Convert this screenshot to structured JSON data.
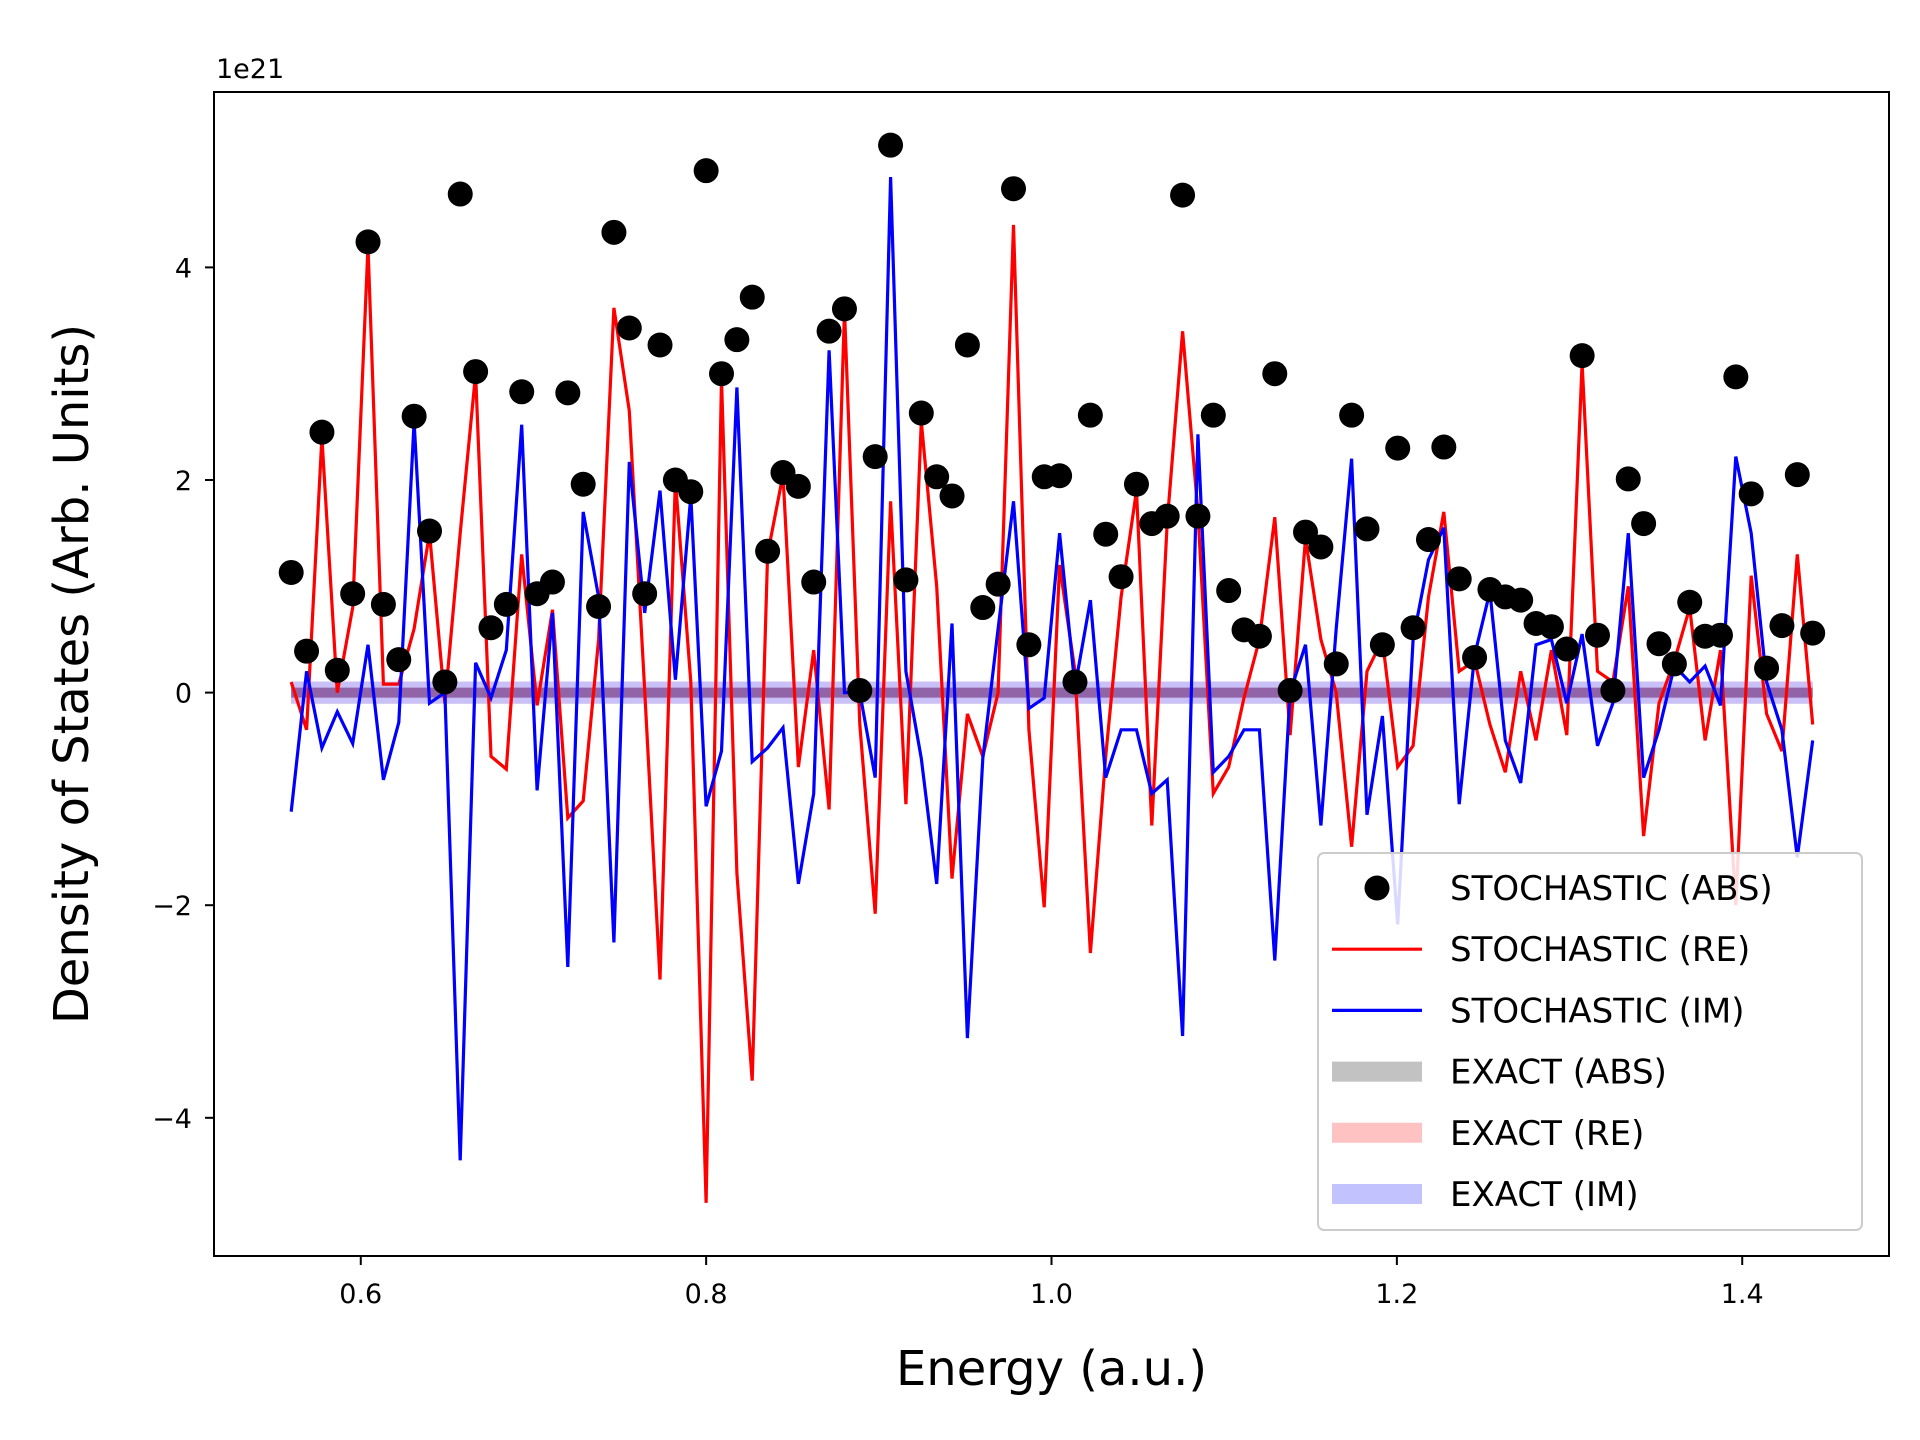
{
  "chart_data": {
    "type": "line",
    "xlabel": "Energy (a.u.)",
    "ylabel": "Density of States (Arb. Units)",
    "y_offset_text": "1e21",
    "xlim": [
      0.515,
      1.485
    ],
    "ylim": [
      -5.3e+21,
      5.65e+21
    ],
    "x_ticks": [
      0.6,
      0.8,
      1.0,
      1.2,
      1.4
    ],
    "x_tick_labels": [
      "0.6",
      "0.8",
      "1.0",
      "1.2",
      "1.4"
    ],
    "y_ticks": [
      -4,
      -2,
      0,
      2,
      4
    ],
    "y_tick_labels": [
      "−4",
      "−2",
      "0",
      "2",
      "4"
    ],
    "y_scale": 1e+21,
    "grid": false,
    "legend_position": "lower-right",
    "colors": {
      "stochastic_abs": "#000000",
      "stochastic_re": "#ff0000",
      "stochastic_im": "#0000ff",
      "exact_abs": "#bfbfbf",
      "exact_re": "#ffbfbf",
      "exact_im": "#bfbfff",
      "exact_overlap": "#8a5a9e"
    },
    "x": [
      0.5597,
      0.5686,
      0.5775,
      0.5864,
      0.5953,
      0.6042,
      0.6131,
      0.622,
      0.6309,
      0.6398,
      0.6487,
      0.6576,
      0.6665,
      0.6754,
      0.6843,
      0.6932,
      0.7021,
      0.711,
      0.7199,
      0.7288,
      0.7377,
      0.7466,
      0.7555,
      0.7644,
      0.7733,
      0.7822,
      0.7911,
      0.8,
      0.8089,
      0.8178,
      0.8267,
      0.8356,
      0.8445,
      0.8534,
      0.8623,
      0.8712,
      0.8801,
      0.889,
      0.8979,
      0.9068,
      0.9157,
      0.9246,
      0.9335,
      0.9424,
      0.9513,
      0.9602,
      0.9691,
      0.978,
      0.9869,
      0.9958,
      1.0047,
      1.0136,
      1.0225,
      1.0314,
      1.0403,
      1.0492,
      1.0581,
      1.067,
      1.0759,
      1.0848,
      1.0937,
      1.1026,
      1.1115,
      1.1204,
      1.1293,
      1.1382,
      1.1471,
      1.156,
      1.1649,
      1.1738,
      1.1827,
      1.1916,
      1.2005,
      1.2094,
      1.2183,
      1.2272,
      1.2361,
      1.245,
      1.2539,
      1.2628,
      1.2717,
      1.2806,
      1.2895,
      1.2984,
      1.3073,
      1.3162,
      1.3251,
      1.334,
      1.3429,
      1.3518,
      1.3607,
      1.3696,
      1.3785,
      1.3874,
      1.3963,
      1.4052,
      1.4141,
      1.423,
      1.4319,
      1.4408
    ],
    "series": [
      {
        "name": "STOCHASTIC (ABS)",
        "style": "scatter",
        "values": [
          1.13,
          0.39,
          2.45,
          0.21,
          0.93,
          4.24,
          0.83,
          0.31,
          2.6,
          1.52,
          0.1,
          4.69,
          3.02,
          0.61,
          0.83,
          2.83,
          0.93,
          1.04,
          2.82,
          1.96,
          0.81,
          4.33,
          3.43,
          0.93,
          3.27,
          2.0,
          1.89,
          4.91,
          3.0,
          3.32,
          3.72,
          1.33,
          2.07,
          1.94,
          1.04,
          3.4,
          3.61,
          0.02,
          2.22,
          5.15,
          1.06,
          2.63,
          2.03,
          1.85,
          3.27,
          0.8,
          1.02,
          4.74,
          0.45,
          2.03,
          2.04,
          0.1,
          2.61,
          1.49,
          1.09,
          1.96,
          1.59,
          1.66,
          4.68,
          1.66,
          2.61,
          0.96,
          0.59,
          0.53,
          3.0,
          0.02,
          1.51,
          1.37,
          0.27,
          2.61,
          1.54,
          0.45,
          2.3,
          0.61,
          1.44,
          2.31,
          1.07,
          0.33,
          0.97,
          0.9,
          0.87,
          0.65,
          0.62,
          0.41,
          3.17,
          0.54,
          0.02,
          2.01,
          1.59,
          0.46,
          0.27,
          0.85,
          0.53,
          0.54,
          2.97,
          1.87,
          0.23,
          0.63,
          2.05,
          0.56
        ]
      },
      {
        "name": "STOCHASTIC (RE)",
        "style": "line",
        "values": [
          0.1,
          -0.35,
          2.4,
          0.0,
          0.8,
          4.2,
          0.08,
          0.08,
          0.6,
          1.5,
          -0.1,
          1.5,
          3.0,
          -0.6,
          -0.72,
          1.3,
          -0.12,
          0.78,
          -1.18,
          -1.02,
          0.5,
          3.62,
          2.65,
          0.02,
          -2.7,
          2.0,
          0.1,
          -4.8,
          2.95,
          -1.7,
          -3.65,
          1.3,
          2.05,
          -0.7,
          0.4,
          -1.1,
          3.6,
          -0.3,
          -2.08,
          1.8,
          -1.05,
          2.55,
          1.0,
          -1.75,
          -0.2,
          -0.6,
          0.0,
          4.4,
          -0.35,
          -2.02,
          1.2,
          0.2,
          -2.45,
          -0.6,
          0.9,
          1.9,
          -1.25,
          1.6,
          3.4,
          1.7,
          -0.95,
          -0.7,
          -0.05,
          0.5,
          1.65,
          -0.4,
          1.45,
          0.5,
          0.0,
          -1.45,
          0.2,
          0.5,
          -0.7,
          -0.5,
          0.9,
          1.7,
          0.2,
          0.3,
          -0.3,
          -0.75,
          0.2,
          -0.45,
          0.4,
          -0.4,
          3.1,
          0.2,
          0.1,
          1.0,
          -1.35,
          -0.1,
          0.3,
          0.8,
          -0.45,
          0.4,
          -2.0,
          1.1,
          -0.2,
          -0.55,
          1.3,
          -0.3
        ]
      },
      {
        "name": "STOCHASTIC (IM)",
        "style": "line",
        "values": [
          -1.12,
          0.2,
          -0.52,
          -0.18,
          -0.48,
          0.45,
          -0.82,
          -0.28,
          2.55,
          -0.1,
          0.0,
          -4.4,
          0.28,
          -0.05,
          0.4,
          2.52,
          -0.92,
          0.75,
          -2.58,
          1.7,
          0.9,
          -2.35,
          2.17,
          0.75,
          1.9,
          0.12,
          1.85,
          -1.07,
          -0.55,
          2.87,
          -0.65,
          -0.52,
          -0.33,
          -1.8,
          -0.95,
          3.22,
          0.0,
          0.0,
          -0.8,
          4.85,
          0.2,
          -0.62,
          -1.8,
          0.65,
          -3.25,
          -0.62,
          0.6,
          1.8,
          -0.15,
          -0.05,
          1.5,
          0.05,
          0.87,
          -0.8,
          -0.35,
          -0.35,
          -0.95,
          -0.82,
          -3.23,
          2.43,
          -0.75,
          -0.6,
          -0.35,
          -0.35,
          -2.52,
          0.0,
          0.45,
          -1.25,
          0.6,
          2.2,
          -1.15,
          -0.22,
          -2.18,
          0.5,
          1.25,
          1.55,
          -1.05,
          0.35,
          0.95,
          -0.45,
          -0.85,
          0.45,
          0.5,
          -0.1,
          0.55,
          -0.5,
          -0.1,
          1.5,
          -0.8,
          -0.35,
          0.25,
          0.1,
          0.25,
          -0.12,
          2.22,
          1.5,
          0.1,
          -0.35,
          -1.55,
          -0.45
        ]
      },
      {
        "name": "EXACT (ABS)",
        "style": "thick-line",
        "x_range": [
          0.5597,
          1.4408
        ],
        "value": 0
      },
      {
        "name": "EXACT (RE)",
        "style": "thick-line",
        "x_range": [
          0.5597,
          1.4408
        ],
        "value": 0
      },
      {
        "name": "EXACT (IM)",
        "style": "thick-line",
        "x_range": [
          0.5597,
          1.4408
        ],
        "value": 0
      }
    ]
  }
}
